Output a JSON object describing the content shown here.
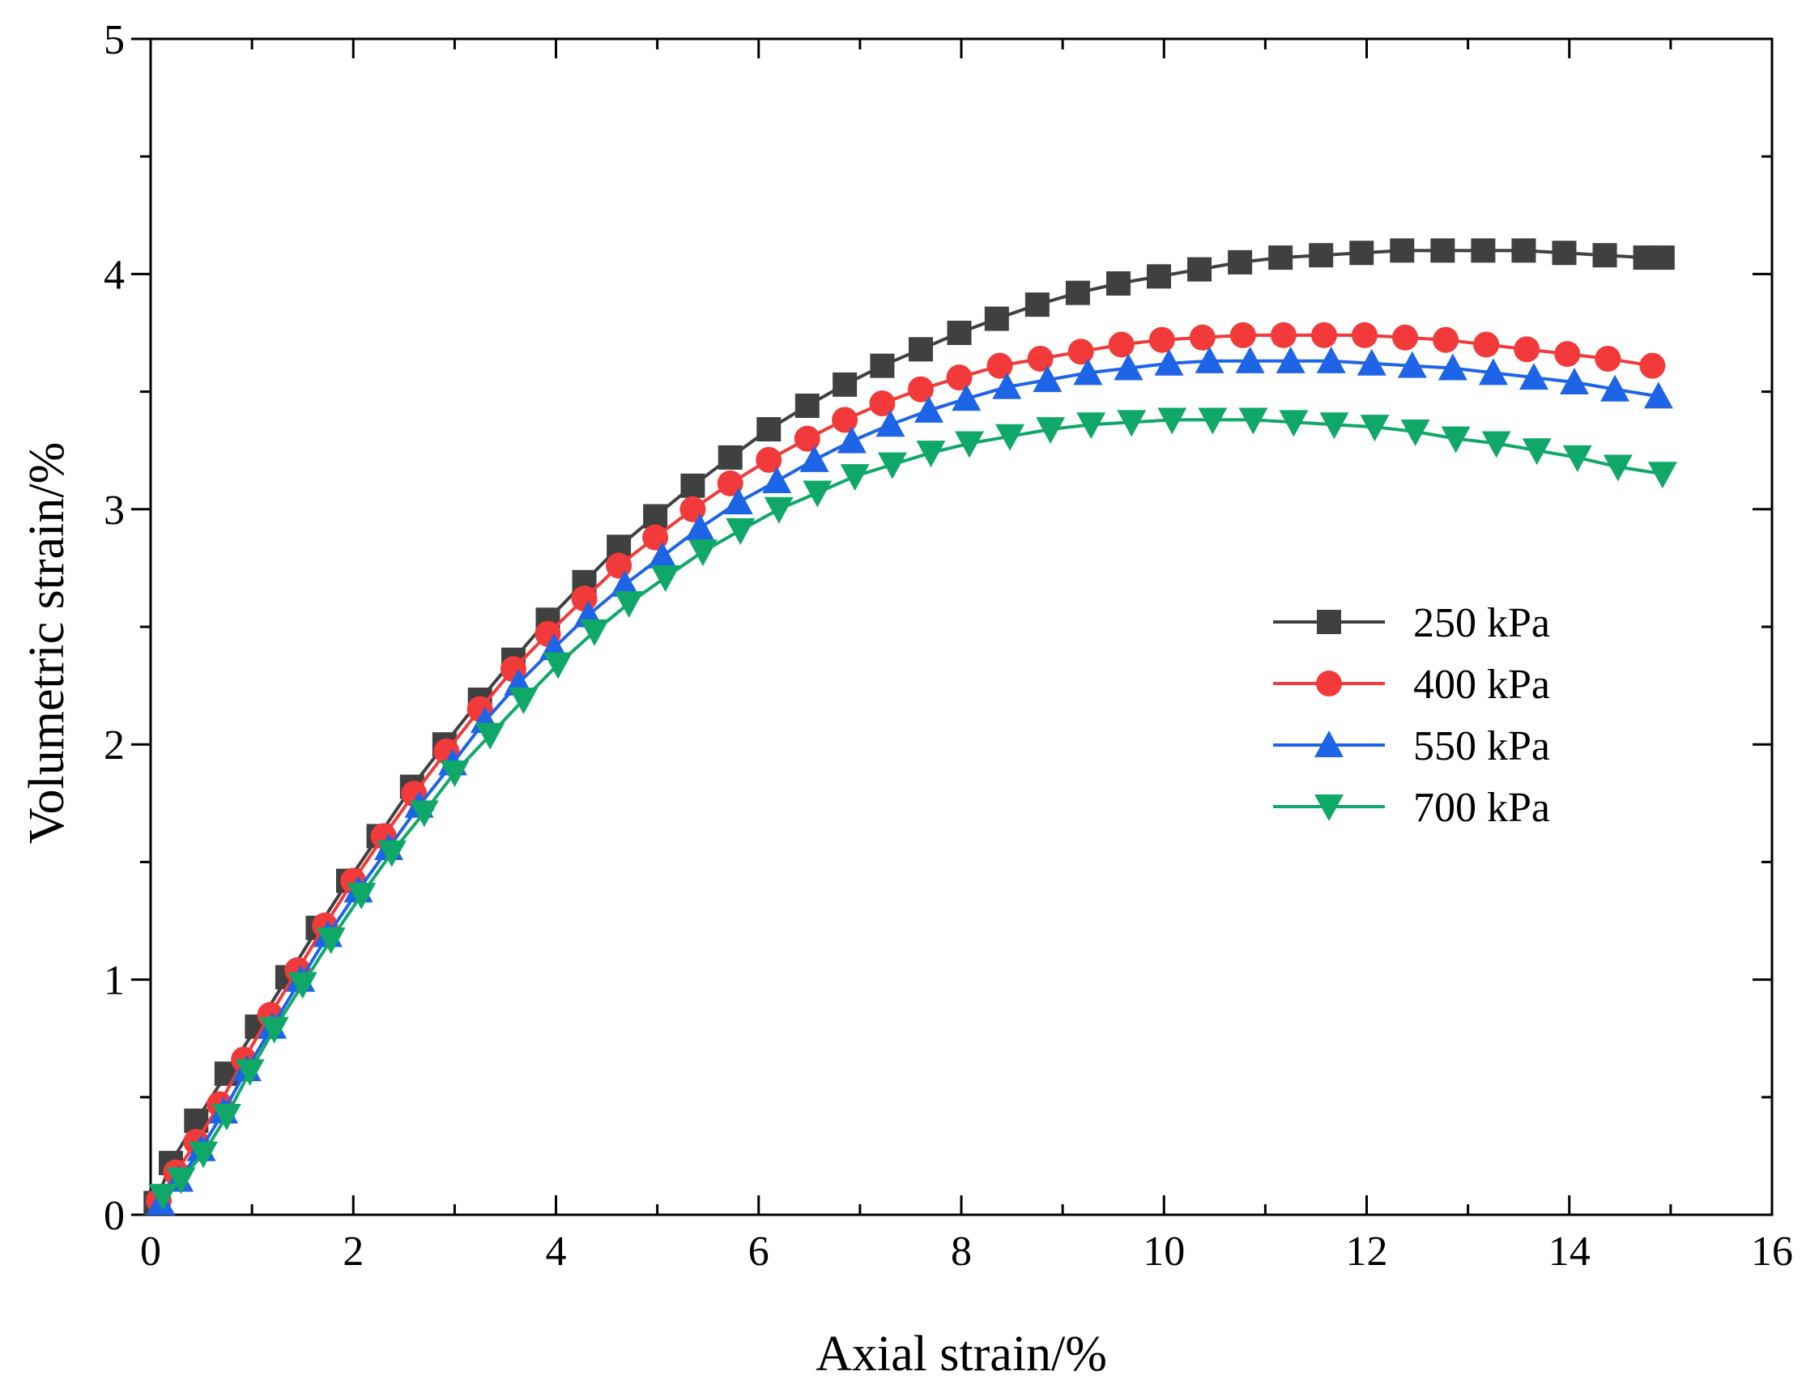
{
  "chart_data": {
    "type": "line",
    "title": "",
    "xlabel": "Axial strain/%",
    "ylabel": "Volumetric strain/%",
    "xlim": [
      0,
      16
    ],
    "ylim": [
      0,
      5
    ],
    "xticks": [
      0,
      2,
      4,
      6,
      8,
      10,
      12,
      14,
      16
    ],
    "yticks": [
      0,
      1,
      2,
      3,
      4,
      5
    ],
    "x_tick_labels": [
      "0",
      "2",
      "4",
      "6",
      "8",
      "10",
      "12",
      "14",
      "16"
    ],
    "y_tick_labels": [
      "0",
      "1",
      "2",
      "3",
      "4",
      "5"
    ],
    "grid": false,
    "legend_position": "right-middle",
    "series": [
      {
        "name": "250 kPa",
        "color": "#404040",
        "marker": "square",
        "points": [
          [
            0.05,
            0.05
          ],
          [
            0.2,
            0.22
          ],
          [
            0.45,
            0.4
          ],
          [
            0.75,
            0.6
          ],
          [
            1.05,
            0.8
          ],
          [
            1.35,
            1.01
          ],
          [
            1.65,
            1.22
          ],
          [
            1.95,
            1.42
          ],
          [
            2.25,
            1.61
          ],
          [
            2.58,
            1.82
          ],
          [
            2.9,
            2.0
          ],
          [
            3.25,
            2.19
          ],
          [
            3.58,
            2.36
          ],
          [
            3.92,
            2.53
          ],
          [
            4.28,
            2.69
          ],
          [
            4.62,
            2.84
          ],
          [
            4.98,
            2.97
          ],
          [
            5.35,
            3.1
          ],
          [
            5.72,
            3.22
          ],
          [
            6.1,
            3.34
          ],
          [
            6.48,
            3.44
          ],
          [
            6.85,
            3.53
          ],
          [
            7.22,
            3.61
          ],
          [
            7.6,
            3.68
          ],
          [
            7.98,
            3.75
          ],
          [
            8.35,
            3.81
          ],
          [
            8.75,
            3.87
          ],
          [
            9.15,
            3.92
          ],
          [
            9.55,
            3.96
          ],
          [
            9.95,
            3.99
          ],
          [
            10.35,
            4.02
          ],
          [
            10.75,
            4.05
          ],
          [
            11.15,
            4.07
          ],
          [
            11.55,
            4.08
          ],
          [
            11.95,
            4.09
          ],
          [
            12.35,
            4.1
          ],
          [
            12.75,
            4.1
          ],
          [
            13.15,
            4.1
          ],
          [
            13.55,
            4.1
          ],
          [
            13.95,
            4.09
          ],
          [
            14.35,
            4.08
          ],
          [
            14.75,
            4.07
          ],
          [
            14.92,
            4.07
          ]
        ]
      },
      {
        "name": "400 kPa",
        "color": "#f23a3a",
        "marker": "circle",
        "points": [
          [
            0.08,
            0.06
          ],
          [
            0.25,
            0.18
          ],
          [
            0.45,
            0.31
          ],
          [
            0.68,
            0.47
          ],
          [
            0.92,
            0.66
          ],
          [
            1.18,
            0.85
          ],
          [
            1.45,
            1.04
          ],
          [
            1.72,
            1.23
          ],
          [
            2.0,
            1.42
          ],
          [
            2.3,
            1.61
          ],
          [
            2.6,
            1.79
          ],
          [
            2.92,
            1.97
          ],
          [
            3.25,
            2.15
          ],
          [
            3.58,
            2.32
          ],
          [
            3.92,
            2.47
          ],
          [
            4.28,
            2.62
          ],
          [
            4.62,
            2.76
          ],
          [
            4.98,
            2.88
          ],
          [
            5.35,
            3.0
          ],
          [
            5.72,
            3.11
          ],
          [
            6.1,
            3.21
          ],
          [
            6.48,
            3.3
          ],
          [
            6.85,
            3.38
          ],
          [
            7.22,
            3.45
          ],
          [
            7.6,
            3.51
          ],
          [
            7.98,
            3.56
          ],
          [
            8.38,
            3.61
          ],
          [
            8.78,
            3.64
          ],
          [
            9.18,
            3.67
          ],
          [
            9.58,
            3.7
          ],
          [
            9.98,
            3.72
          ],
          [
            10.38,
            3.73
          ],
          [
            10.78,
            3.74
          ],
          [
            11.18,
            3.74
          ],
          [
            11.58,
            3.74
          ],
          [
            11.98,
            3.74
          ],
          [
            12.38,
            3.73
          ],
          [
            12.78,
            3.72
          ],
          [
            13.18,
            3.7
          ],
          [
            13.58,
            3.68
          ],
          [
            13.98,
            3.66
          ],
          [
            14.38,
            3.64
          ],
          [
            14.82,
            3.61
          ]
        ]
      },
      {
        "name": "550 kPa",
        "color": "#1e64e6",
        "marker": "triangle-up",
        "points": [
          [
            0.1,
            0.05
          ],
          [
            0.28,
            0.15
          ],
          [
            0.5,
            0.28
          ],
          [
            0.72,
            0.44
          ],
          [
            0.95,
            0.62
          ],
          [
            1.2,
            0.8
          ],
          [
            1.48,
            1.0
          ],
          [
            1.75,
            1.19
          ],
          [
            2.05,
            1.38
          ],
          [
            2.35,
            1.56
          ],
          [
            2.65,
            1.74
          ],
          [
            2.98,
            1.92
          ],
          [
            3.3,
            2.1
          ],
          [
            3.63,
            2.26
          ],
          [
            3.98,
            2.41
          ],
          [
            4.32,
            2.55
          ],
          [
            4.68,
            2.68
          ],
          [
            5.05,
            2.8
          ],
          [
            5.42,
            2.92
          ],
          [
            5.8,
            3.03
          ],
          [
            6.18,
            3.12
          ],
          [
            6.55,
            3.21
          ],
          [
            6.92,
            3.29
          ],
          [
            7.3,
            3.36
          ],
          [
            7.68,
            3.42
          ],
          [
            8.05,
            3.47
          ],
          [
            8.45,
            3.52
          ],
          [
            8.85,
            3.55
          ],
          [
            9.25,
            3.58
          ],
          [
            9.65,
            3.6
          ],
          [
            10.05,
            3.62
          ],
          [
            10.45,
            3.63
          ],
          [
            10.85,
            3.63
          ],
          [
            11.25,
            3.63
          ],
          [
            11.65,
            3.63
          ],
          [
            12.05,
            3.62
          ],
          [
            12.45,
            3.61
          ],
          [
            12.85,
            3.6
          ],
          [
            13.25,
            3.58
          ],
          [
            13.65,
            3.56
          ],
          [
            14.05,
            3.54
          ],
          [
            14.45,
            3.51
          ],
          [
            14.88,
            3.48
          ]
        ]
      },
      {
        "name": "700 kPa",
        "color": "#10a868",
        "marker": "triangle-down",
        "points": [
          [
            0.12,
            0.08
          ],
          [
            0.3,
            0.15
          ],
          [
            0.52,
            0.26
          ],
          [
            0.75,
            0.42
          ],
          [
            0.98,
            0.61
          ],
          [
            1.22,
            0.79
          ],
          [
            1.5,
            0.98
          ],
          [
            1.78,
            1.17
          ],
          [
            2.08,
            1.36
          ],
          [
            2.38,
            1.54
          ],
          [
            2.7,
            1.71
          ],
          [
            3.0,
            1.88
          ],
          [
            3.35,
            2.04
          ],
          [
            3.68,
            2.19
          ],
          [
            4.02,
            2.34
          ],
          [
            4.38,
            2.48
          ],
          [
            4.72,
            2.6
          ],
          [
            5.08,
            2.71
          ],
          [
            5.45,
            2.82
          ],
          [
            5.82,
            2.91
          ],
          [
            6.2,
            3.0
          ],
          [
            6.58,
            3.07
          ],
          [
            6.95,
            3.14
          ],
          [
            7.32,
            3.19
          ],
          [
            7.7,
            3.24
          ],
          [
            8.08,
            3.28
          ],
          [
            8.48,
            3.31
          ],
          [
            8.88,
            3.34
          ],
          [
            9.28,
            3.36
          ],
          [
            9.68,
            3.37
          ],
          [
            10.08,
            3.38
          ],
          [
            10.48,
            3.38
          ],
          [
            10.88,
            3.38
          ],
          [
            11.28,
            3.37
          ],
          [
            11.68,
            3.36
          ],
          [
            12.08,
            3.35
          ],
          [
            12.48,
            3.33
          ],
          [
            12.88,
            3.3
          ],
          [
            13.28,
            3.28
          ],
          [
            13.68,
            3.25
          ],
          [
            14.08,
            3.22
          ],
          [
            14.48,
            3.18
          ],
          [
            14.92,
            3.15
          ]
        ]
      }
    ]
  }
}
